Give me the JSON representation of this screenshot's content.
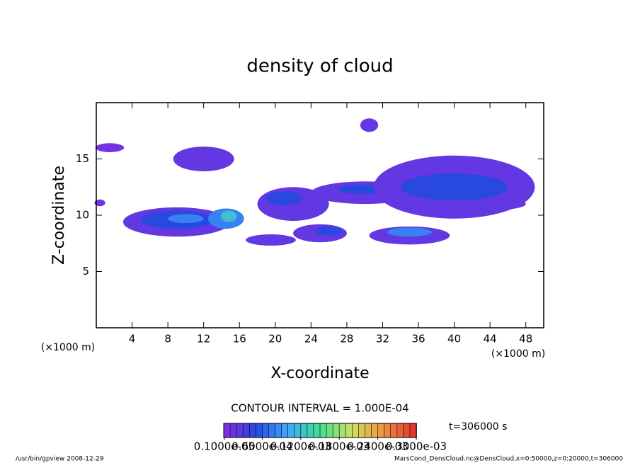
{
  "chart_data": {
    "type": "contour",
    "title": "density of cloud",
    "xlabel": "X-coordinate",
    "ylabel": "Z-coordinate",
    "x_unit": "(×1000 m)",
    "y_unit": "(×1000 m)",
    "xlim": [
      0,
      50
    ],
    "xticks": [
      4,
      8,
      12,
      16,
      20,
      24,
      28,
      32,
      36,
      40,
      44,
      48
    ],
    "ylim": [
      0,
      20
    ],
    "yticks": [
      5,
      10,
      15
    ],
    "cells": [
      {
        "x": 1.5,
        "z": 16,
        "dx": 1.6,
        "dz": 0.4,
        "value": 1e-05
      },
      {
        "x": 0.4,
        "z": 11.1,
        "dx": 0.6,
        "dz": 0.3,
        "value": 1e-05
      },
      {
        "x": 12,
        "z": 15,
        "dx": 3.4,
        "dz": 1.1,
        "value": 2e-05
      },
      {
        "x": 9,
        "z": 9.4,
        "dx": 6,
        "dz": 1.3,
        "value": 2e-05
      },
      {
        "x": 9,
        "z": 9.6,
        "dx": 4,
        "dz": 0.8,
        "value": 5e-05
      },
      {
        "x": 10,
        "z": 9.7,
        "dx": 2,
        "dz": 0.4,
        "value": 8e-05
      },
      {
        "x": 14.5,
        "z": 9.7,
        "dx": 2,
        "dz": 0.9,
        "value": 8e-05
      },
      {
        "x": 14.8,
        "z": 9.9,
        "dx": 0.9,
        "dz": 0.5,
        "value": 0.00012
      },
      {
        "x": 22,
        "z": 11,
        "dx": 4,
        "dz": 1.5,
        "value": 2e-05
      },
      {
        "x": 21,
        "z": 11.5,
        "dx": 2,
        "dz": 0.6,
        "value": 5e-05
      },
      {
        "x": 19.5,
        "z": 7.8,
        "dx": 2.8,
        "dz": 0.5,
        "value": 2e-05
      },
      {
        "x": 25,
        "z": 8.4,
        "dx": 3,
        "dz": 0.8,
        "value": 2e-05
      },
      {
        "x": 26,
        "z": 8.6,
        "dx": 1.5,
        "dz": 0.4,
        "value": 5e-05
      },
      {
        "x": 30,
        "z": 12,
        "dx": 6,
        "dz": 1,
        "value": 2e-05
      },
      {
        "x": 30,
        "z": 12.3,
        "dx": 3,
        "dz": 0.4,
        "value": 5e-05
      },
      {
        "x": 30.5,
        "z": 18,
        "dx": 1,
        "dz": 0.6,
        "value": 2e-05
      },
      {
        "x": 40,
        "z": 12.5,
        "dx": 9,
        "dz": 2.8,
        "value": 2e-05
      },
      {
        "x": 40,
        "z": 12.5,
        "dx": 6,
        "dz": 1.2,
        "value": 5e-05
      },
      {
        "x": 35,
        "z": 8.2,
        "dx": 4.5,
        "dz": 0.8,
        "value": 2e-05
      },
      {
        "x": 35,
        "z": 8.5,
        "dx": 2.5,
        "dz": 0.4,
        "value": 8e-05
      },
      {
        "x": 45,
        "z": 11,
        "dx": 3,
        "dz": 0.5,
        "value": 2e-05
      }
    ],
    "colormap": [
      "#8a2be2",
      "#2848e0",
      "#40a8ff",
      "#40e090",
      "#d0e060",
      "#f09040",
      "#e03030"
    ],
    "clim": [
      0,
      0.0003
    ],
    "colorbar_ticks": [
      {
        "value": 1e-06,
        "label": "0.1000e-05"
      },
      {
        "value": 6e-05,
        "label": "0.6000e-04"
      },
      {
        "value": 0.00012,
        "label": "0.1200e-03"
      },
      {
        "value": 0.00018,
        "label": "0.1800e-03"
      },
      {
        "value": 0.00024,
        "label": "0.2400e-03"
      },
      {
        "value": 0.0003,
        "label": "0.3000e-03"
      }
    ],
    "contour_interval": "CONTOUR INTERVAL = 1.000E-04",
    "time_label": "t=306000 s",
    "footer_left": "/usr/bin/gpview  2008-12-29",
    "footer_right": "MarsCond_DensCloud.nc@DensCloud,x=0:50000,z=0:20000,t=306000"
  }
}
